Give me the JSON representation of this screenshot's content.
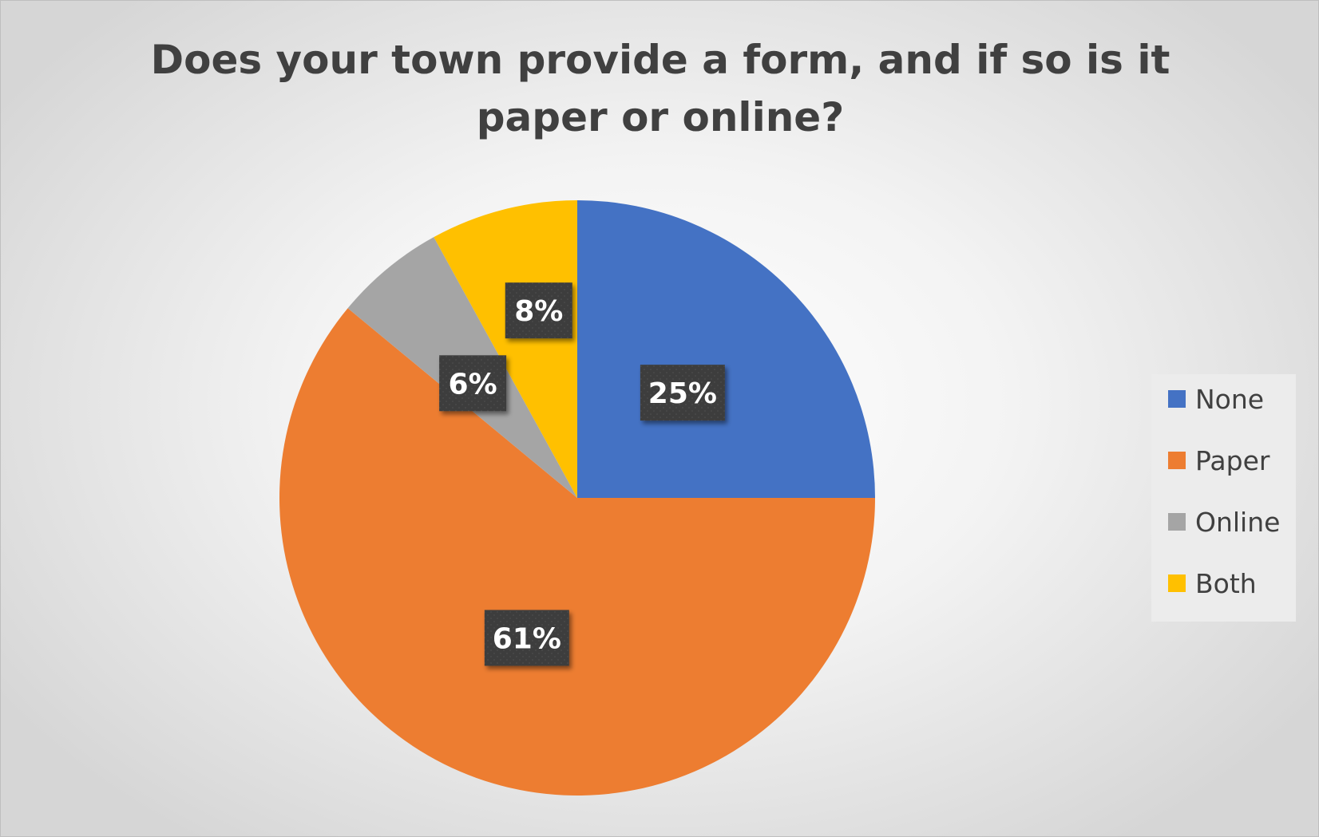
{
  "chart_data": {
    "type": "pie",
    "title": "Does your town provide a form, and if so is it paper or online?",
    "title_lines": [
      "Does your town provide a form, and if so is it",
      "paper or online?"
    ],
    "categories": [
      "None",
      "Paper",
      "Online",
      "Both"
    ],
    "values": [
      25,
      61,
      6,
      8
    ],
    "data_labels": [
      "25%",
      "61%",
      "6%",
      "8%"
    ],
    "colors": [
      "#4472C4",
      "#ED7D31",
      "#A5A5A5",
      "#FFC000"
    ],
    "start_angle_deg": 0,
    "direction": "clockwise",
    "legend_position": "right",
    "data_label_style": "dark-boxes"
  }
}
